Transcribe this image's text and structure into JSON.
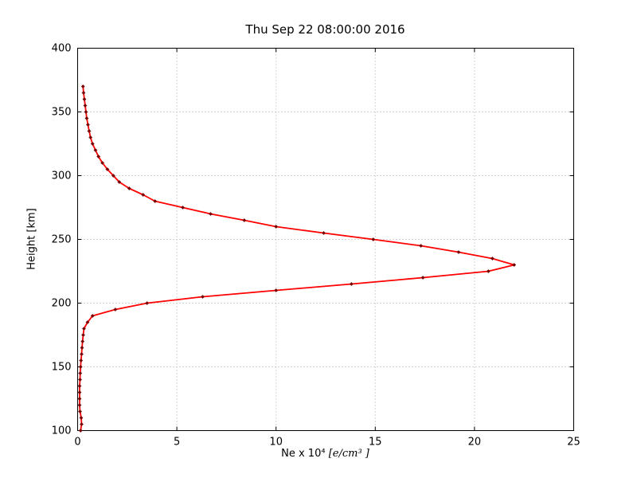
{
  "figure": {
    "background": "#ffffff"
  },
  "chart_data": {
    "type": "line",
    "title": "Thu Sep 22 08:00:00 2016",
    "xlabel": "Ne x 10⁴  [e/cm³ ]",
    "xlabel_prefix": "Ne x 10⁴  ",
    "xlabel_units": "[e/cm³ ]",
    "ylabel": "Height [km]",
    "xlim": [
      0,
      25
    ],
    "ylim": [
      100,
      400
    ],
    "x_ticks": [
      0,
      5,
      10,
      15,
      20,
      25
    ],
    "y_ticks": [
      100,
      150,
      200,
      250,
      300,
      350,
      400
    ],
    "grid": true,
    "grid_style": "dotted",
    "grid_color": "#aaaaaa",
    "line_color": "#ff0000",
    "marker_color": "#770000",
    "marker_shape": "diamond",
    "legend": "none",
    "series": [
      {
        "name": "electron-density-profile",
        "y_height_km": [
          100,
          105,
          110,
          115,
          120,
          125,
          130,
          135,
          140,
          145,
          150,
          155,
          160,
          165,
          170,
          175,
          180,
          185,
          190,
          195,
          200,
          205,
          210,
          215,
          220,
          225,
          230,
          235,
          240,
          245,
          250,
          255,
          260,
          265,
          270,
          275,
          280,
          285,
          290,
          295,
          300,
          305,
          310,
          315,
          320,
          325,
          330,
          335,
          340,
          345,
          350,
          355,
          360,
          365,
          370
        ],
        "x_ne": [
          0.15,
          0.2,
          0.18,
          0.12,
          0.1,
          0.1,
          0.1,
          0.1,
          0.12,
          0.13,
          0.15,
          0.17,
          0.2,
          0.22,
          0.25,
          0.28,
          0.32,
          0.5,
          0.75,
          1.9,
          3.5,
          6.3,
          10.0,
          13.8,
          17.4,
          20.7,
          22.0,
          20.9,
          19.2,
          17.3,
          14.9,
          12.4,
          10.0,
          8.4,
          6.7,
          5.3,
          3.9,
          3.3,
          2.6,
          2.1,
          1.8,
          1.5,
          1.25,
          1.05,
          0.9,
          0.75,
          0.65,
          0.58,
          0.52,
          0.46,
          0.42,
          0.38,
          0.34,
          0.3,
          0.27
        ]
      }
    ]
  }
}
